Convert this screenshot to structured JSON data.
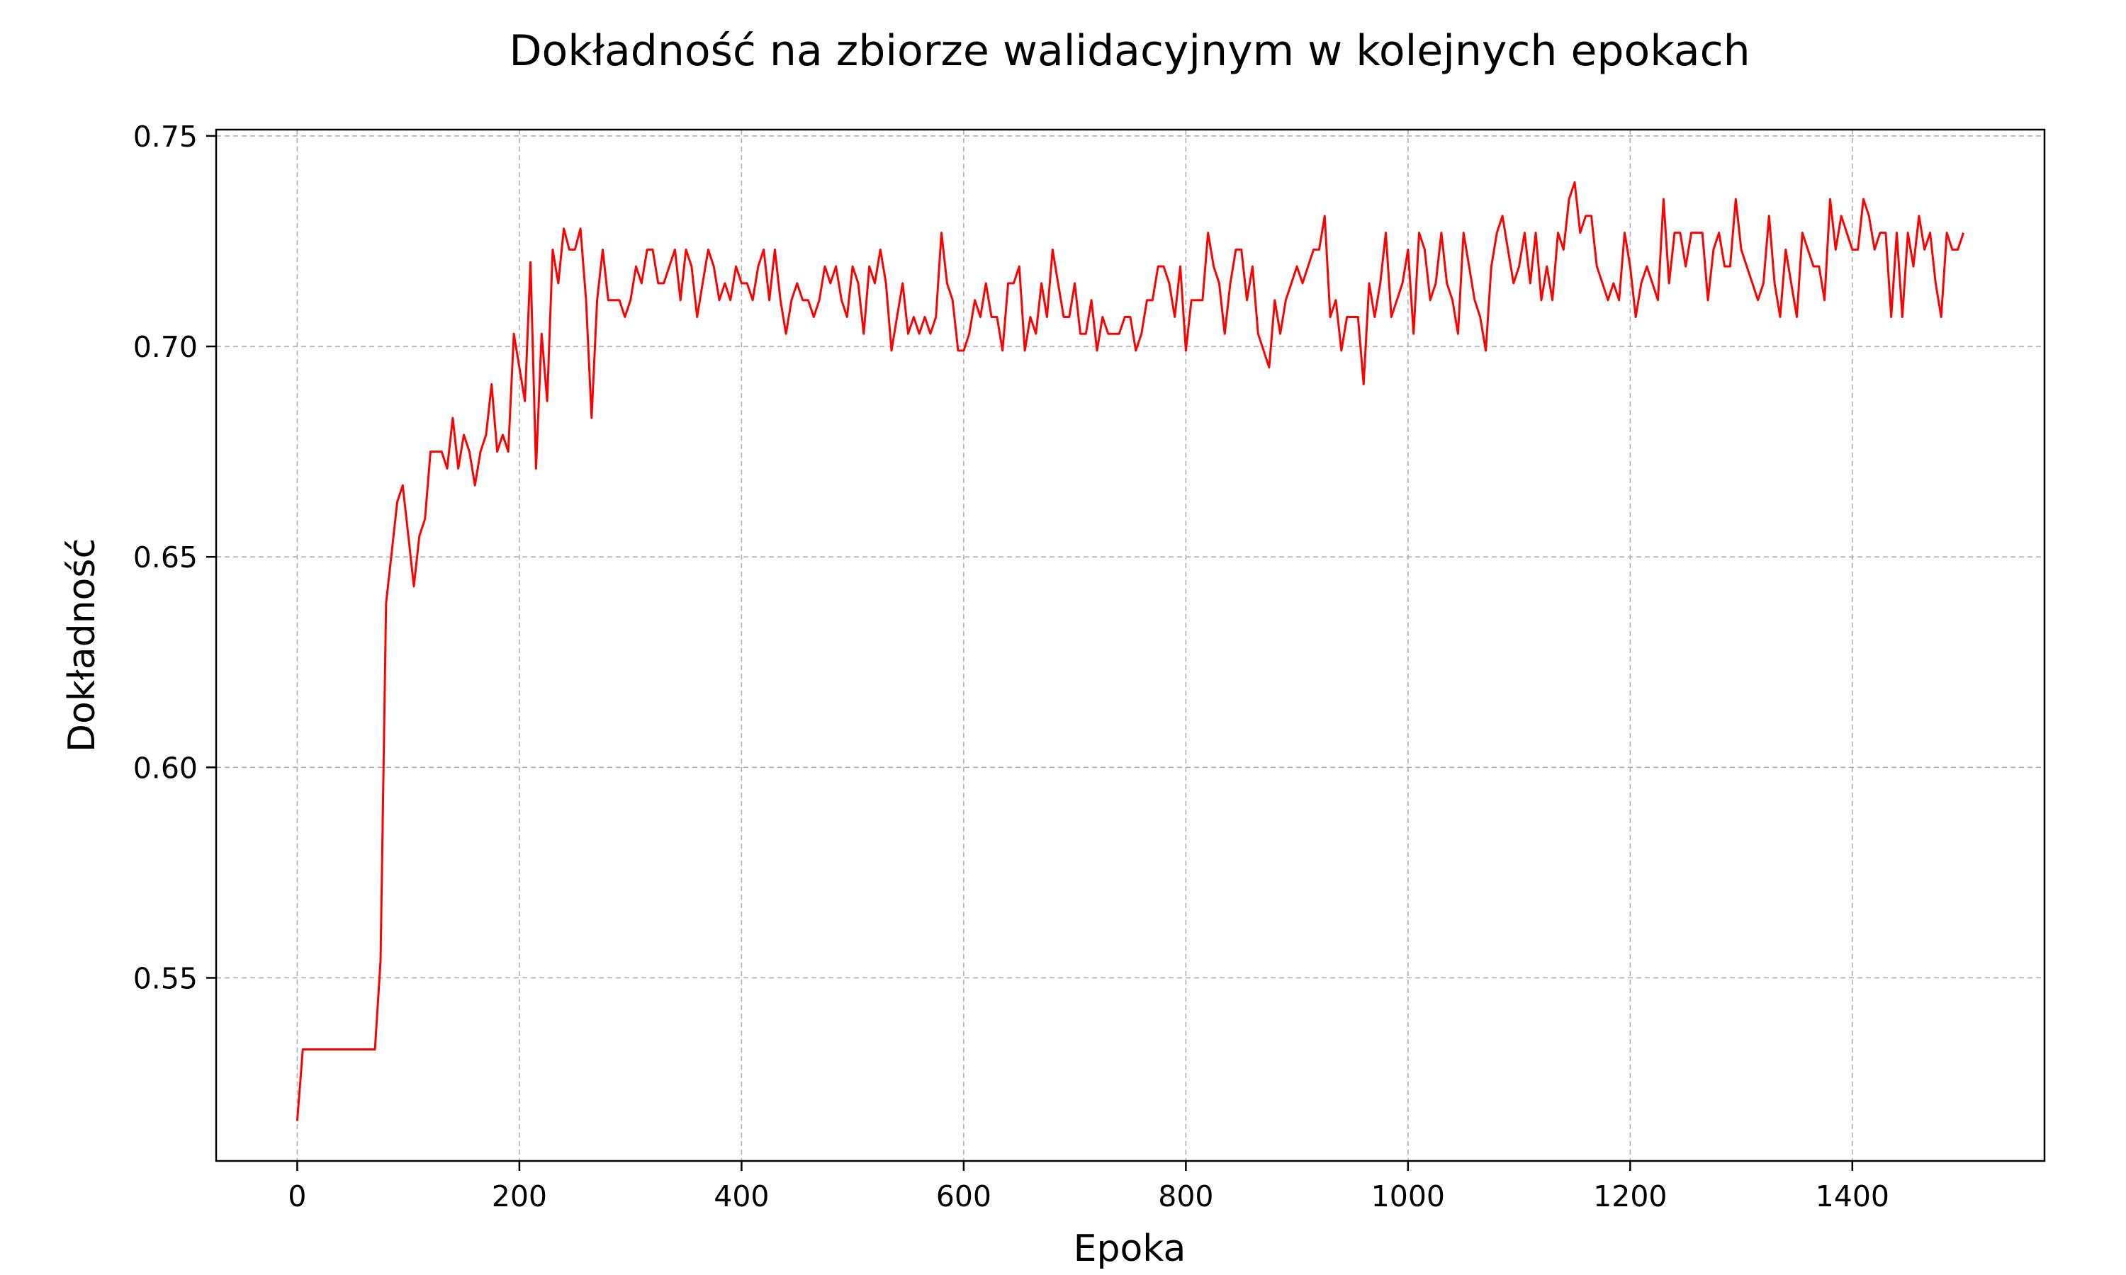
{
  "chart_data": {
    "type": "line",
    "title": "Dokładność na zbiorze walidacyjnym w kolejnych epokach",
    "xlabel": "Epoka",
    "ylabel": "Dokładność",
    "xlim": [
      -73,
      1573
    ],
    "ylim": [
      0.5065,
      0.7515
    ],
    "xticks": [
      0,
      200,
      400,
      600,
      800,
      1000,
      1200,
      1400
    ],
    "xtick_labels": [
      "0",
      "200",
      "400",
      "600",
      "800",
      "1000",
      "1200",
      "1400"
    ],
    "yticks": [
      0.55,
      0.6,
      0.65,
      0.7,
      0.75
    ],
    "ytick_labels": [
      "0.55",
      "0.60",
      "0.65",
      "0.70",
      "0.75"
    ],
    "grid": true,
    "legend": "none",
    "series": [
      {
        "color": "#ff0000",
        "x": [
          0,
          5,
          10,
          15,
          20,
          25,
          30,
          35,
          40,
          45,
          50,
          55,
          60,
          65,
          70,
          75,
          80,
          85,
          90,
          95,
          100,
          105,
          110,
          115,
          120,
          125,
          130,
          135,
          140,
          145,
          150,
          155,
          160,
          165,
          170,
          175,
          180,
          185,
          190,
          195,
          200,
          205,
          210,
          215,
          220,
          225,
          230,
          235,
          240,
          245,
          250,
          255,
          260,
          265,
          270,
          275,
          280,
          285,
          290,
          295,
          300,
          305,
          310,
          315,
          320,
          325,
          330,
          335,
          340,
          345,
          350,
          355,
          360,
          365,
          370,
          375,
          380,
          385,
          390,
          395,
          400,
          405,
          410,
          415,
          420,
          425,
          430,
          435,
          440,
          445,
          450,
          455,
          460,
          465,
          470,
          475,
          480,
          485,
          490,
          495,
          500,
          505,
          510,
          515,
          520,
          525,
          530,
          535,
          540,
          545,
          550,
          555,
          560,
          565,
          570,
          575,
          580,
          585,
          590,
          595,
          600,
          605,
          610,
          615,
          620,
          625,
          630,
          635,
          640,
          645,
          650,
          655,
          660,
          665,
          670,
          675,
          680,
          685,
          690,
          695,
          700,
          705,
          710,
          715,
          720,
          725,
          730,
          735,
          740,
          745,
          750,
          755,
          760,
          765,
          770,
          775,
          780,
          785,
          790,
          795,
          800,
          805,
          810,
          815,
          820,
          825,
          830,
          835,
          840,
          845,
          850,
          855,
          860,
          865,
          870,
          875,
          880,
          885,
          890,
          895,
          900,
          905,
          910,
          915,
          920,
          925,
          930,
          935,
          940,
          945,
          950,
          955,
          960,
          965,
          970,
          975,
          980,
          985,
          990,
          995,
          1000,
          1005,
          1010,
          1015,
          1020,
          1025,
          1030,
          1035,
          1040,
          1045,
          1050,
          1055,
          1060,
          1065,
          1070,
          1075,
          1080,
          1085,
          1090,
          1095,
          1100,
          1105,
          1110,
          1115,
          1120,
          1125,
          1130,
          1135,
          1140,
          1145,
          1150,
          1155,
          1160,
          1165,
          1170,
          1175,
          1180,
          1185,
          1190,
          1195,
          1200,
          1205,
          1210,
          1215,
          1220,
          1225,
          1230,
          1235,
          1240,
          1245,
          1250,
          1255,
          1260,
          1265,
          1270,
          1275,
          1280,
          1285,
          1290,
          1295,
          1300,
          1305,
          1310,
          1315,
          1320,
          1325,
          1330,
          1335,
          1340,
          1345,
          1350,
          1355,
          1360,
          1365,
          1370,
          1375,
          1380,
          1385,
          1390,
          1395,
          1400,
          1405,
          1410,
          1415,
          1420,
          1425,
          1430,
          1435,
          1440,
          1445,
          1450,
          1455,
          1460,
          1465,
          1470,
          1475,
          1480,
          1485,
          1490,
          1495,
          1500
        ],
        "y": [
          0.516,
          0.533,
          0.533,
          0.533,
          0.533,
          0.533,
          0.533,
          0.533,
          0.533,
          0.533,
          0.533,
          0.533,
          0.533,
          0.533,
          0.533,
          0.554,
          0.639,
          0.651,
          0.663,
          0.667,
          0.655,
          0.643,
          0.655,
          0.659,
          0.675,
          0.675,
          0.675,
          0.671,
          0.683,
          0.671,
          0.679,
          0.675,
          0.667,
          0.675,
          0.679,
          0.691,
          0.675,
          0.679,
          0.675,
          0.703,
          0.695,
          0.687,
          0.72,
          0.671,
          0.703,
          0.687,
          0.723,
          0.715,
          0.728,
          0.723,
          0.723,
          0.728,
          0.711,
          0.683,
          0.711,
          0.723,
          0.711,
          0.711,
          0.711,
          0.707,
          0.711,
          0.719,
          0.715,
          0.723,
          0.723,
          0.715,
          0.715,
          0.719,
          0.723,
          0.711,
          0.723,
          0.719,
          0.707,
          0.715,
          0.723,
          0.719,
          0.711,
          0.715,
          0.711,
          0.719,
          0.715,
          0.715,
          0.711,
          0.719,
          0.723,
          0.711,
          0.723,
          0.711,
          0.703,
          0.711,
          0.715,
          0.711,
          0.711,
          0.707,
          0.711,
          0.719,
          0.715,
          0.719,
          0.711,
          0.707,
          0.719,
          0.715,
          0.703,
          0.719,
          0.715,
          0.723,
          0.715,
          0.699,
          0.707,
          0.715,
          0.703,
          0.707,
          0.703,
          0.707,
          0.703,
          0.707,
          0.727,
          0.715,
          0.711,
          0.699,
          0.699,
          0.703,
          0.711,
          0.707,
          0.715,
          0.707,
          0.707,
          0.699,
          0.715,
          0.715,
          0.719,
          0.699,
          0.707,
          0.703,
          0.715,
          0.707,
          0.723,
          0.715,
          0.707,
          0.707,
          0.715,
          0.703,
          0.703,
          0.711,
          0.699,
          0.707,
          0.703,
          0.703,
          0.703,
          0.707,
          0.707,
          0.699,
          0.703,
          0.711,
          0.711,
          0.719,
          0.719,
          0.715,
          0.707,
          0.719,
          0.699,
          0.711,
          0.711,
          0.711,
          0.727,
          0.719,
          0.715,
          0.703,
          0.715,
          0.723,
          0.723,
          0.711,
          0.719,
          0.703,
          0.699,
          0.695,
          0.711,
          0.703,
          0.711,
          0.715,
          0.719,
          0.715,
          0.719,
          0.723,
          0.723,
          0.731,
          0.707,
          0.711,
          0.699,
          0.707,
          0.707,
          0.707,
          0.691,
          0.715,
          0.707,
          0.715,
          0.727,
          0.707,
          0.711,
          0.715,
          0.723,
          0.703,
          0.727,
          0.723,
          0.711,
          0.715,
          0.727,
          0.715,
          0.711,
          0.703,
          0.727,
          0.719,
          0.711,
          0.707,
          0.699,
          0.719,
          0.727,
          0.731,
          0.723,
          0.715,
          0.719,
          0.727,
          0.715,
          0.727,
          0.711,
          0.719,
          0.711,
          0.727,
          0.723,
          0.735,
          0.739,
          0.727,
          0.731,
          0.731,
          0.719,
          0.715,
          0.711,
          0.715,
          0.711,
          0.727,
          0.719,
          0.707,
          0.715,
          0.719,
          0.715,
          0.711,
          0.735,
          0.715,
          0.727,
          0.727,
          0.719,
          0.727,
          0.727,
          0.727,
          0.711,
          0.723,
          0.727,
          0.719,
          0.719,
          0.735,
          0.723,
          0.719,
          0.715,
          0.711,
          0.715,
          0.731,
          0.715,
          0.707,
          0.723,
          0.715,
          0.707,
          0.727,
          0.723,
          0.719,
          0.719,
          0.711,
          0.735,
          0.723,
          0.731,
          0.727,
          0.723,
          0.723,
          0.735,
          0.731,
          0.723,
          0.727,
          0.727,
          0.707,
          0.727,
          0.707,
          0.727,
          0.719,
          0.731,
          0.723,
          0.727,
          0.715,
          0.707,
          0.727,
          0.723,
          0.723,
          0.727
        ]
      }
    ]
  }
}
